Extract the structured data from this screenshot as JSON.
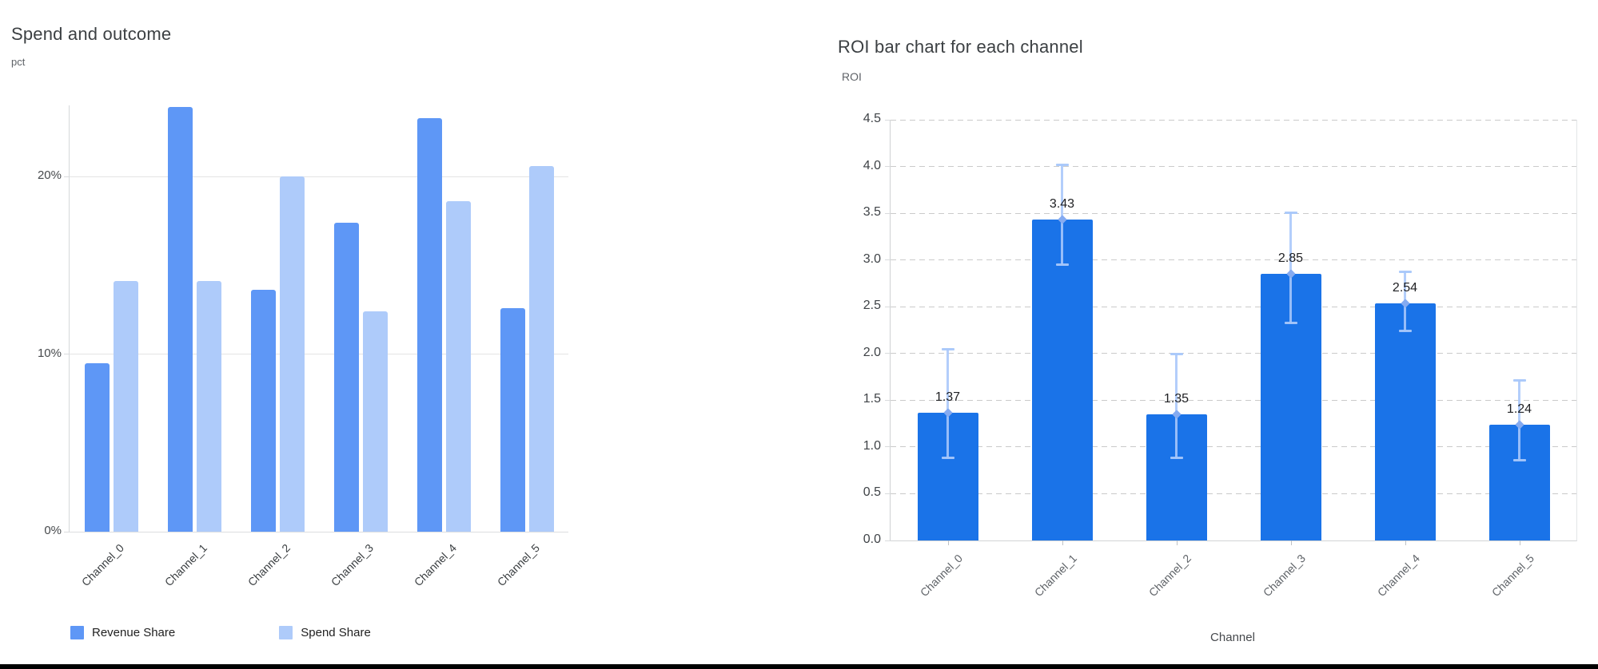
{
  "left_chart": {
    "title": "Spend and outcome",
    "y_axis_unit": "pct"
  },
  "right_chart": {
    "title": "ROI bar chart for each channel",
    "y_axis_unit": "ROI",
    "x_axis_title": "Channel"
  },
  "chart_data": [
    {
      "id": "spend-and-outcome",
      "type": "bar",
      "title": "Spend and outcome",
      "ylabel": "pct",
      "xlabel": "",
      "categories": [
        "Channel_0",
        "Channel_1",
        "Channel_2",
        "Channel_3",
        "Channel_4",
        "Channel_5"
      ],
      "series": [
        {
          "name": "Revenue Share",
          "color": "#5e97f6",
          "values": [
            9.5,
            23.9,
            13.6,
            17.4,
            23.3,
            12.6
          ]
        },
        {
          "name": "Spend Share",
          "color": "#aecbfa",
          "values": [
            14.1,
            14.1,
            20.0,
            12.4,
            18.6,
            20.6
          ]
        }
      ],
      "ylim": [
        0,
        24
      ],
      "yticks": [
        "0%",
        "10%",
        "20%"
      ],
      "ytick_values": [
        0,
        10,
        20
      ],
      "grid": "solid",
      "legend_position": "bottom",
      "value_format": "percent"
    },
    {
      "id": "roi-by-channel",
      "type": "bar",
      "title": "ROI bar chart for each channel",
      "ylabel": "ROI",
      "xlabel": "Channel",
      "categories": [
        "Channel_0",
        "Channel_1",
        "Channel_2",
        "Channel_3",
        "Channel_4",
        "Channel_5"
      ],
      "values": [
        1.37,
        3.43,
        1.35,
        2.85,
        2.54,
        1.24
      ],
      "bar_labels": [
        "1.37",
        "3.43",
        "1.35",
        "2.85",
        "2.54",
        "1.24"
      ],
      "error_low": [
        0.88,
        2.95,
        0.88,
        2.32,
        2.24,
        0.85
      ],
      "error_high": [
        2.05,
        4.02,
        2.0,
        3.51,
        2.88,
        1.72
      ],
      "bar_color": "#1a73e8",
      "error_color": "#a8c7fa",
      "error_marker_color": "#85abf1",
      "ylim": [
        0,
        4.5
      ],
      "yticks": [
        "0.0",
        "0.5",
        "1.0",
        "1.5",
        "2.0",
        "2.5",
        "3.0",
        "3.5",
        "4.0",
        "4.5"
      ],
      "ytick_values": [
        0,
        0.5,
        1,
        1.5,
        2,
        2.5,
        3,
        3.5,
        4,
        4.5
      ],
      "grid": "dashed",
      "legend_position": "none"
    }
  ],
  "footer": {
    "divider_color": "#000000"
  }
}
